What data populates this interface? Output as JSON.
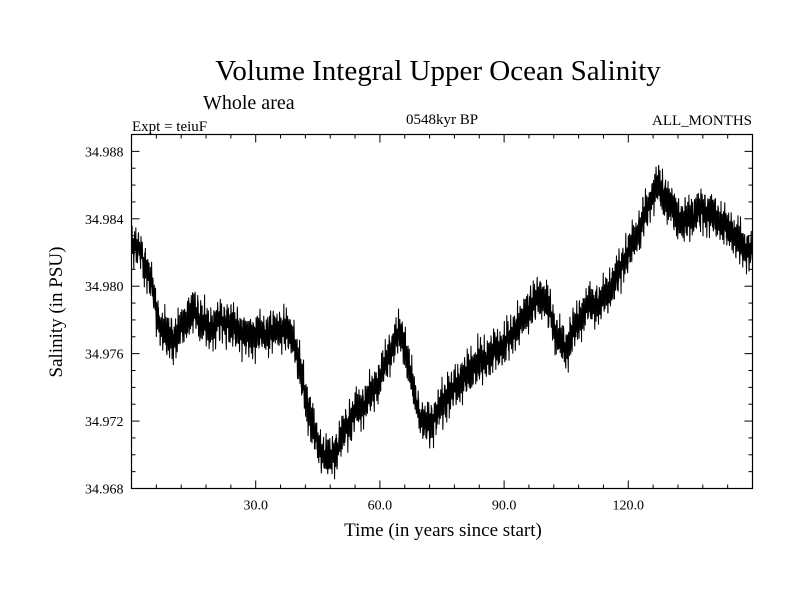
{
  "chart_data": {
    "type": "line",
    "title": "Volume Integral Upper Ocean Salinity",
    "subtitle": "Whole area",
    "experiment": "Expt = teiuF",
    "period": "0548kyr BP",
    "months": "ALL_MONTHS",
    "xlabel": "Time (in years since start)",
    "ylabel": "Salinity (in PSU)",
    "xlim": [
      0,
      150
    ],
    "ylim": [
      34.968,
      34.989
    ],
    "x_ticks": [
      30,
      60,
      90,
      120
    ],
    "x_tick_labels": [
      "30.0",
      "60.0",
      "90.0",
      "120.0"
    ],
    "y_ticks": [
      34.968,
      34.972,
      34.976,
      34.98,
      34.984,
      34.988
    ],
    "y_tick_labels": [
      "34.968",
      "34.972",
      "34.976",
      "34.980",
      "34.984",
      "34.988"
    ],
    "series": [
      {
        "name": "Salinity",
        "x": [
          0,
          2,
          3,
          5,
          6,
          7,
          9,
          11,
          13,
          15,
          17,
          19,
          22,
          25,
          28,
          31,
          34,
          37,
          39,
          40,
          42,
          44,
          46,
          48,
          50,
          52,
          54,
          56,
          58,
          60,
          62,
          64,
          65,
          66,
          68,
          70,
          72,
          75,
          78,
          81,
          84,
          87,
          90,
          93,
          96,
          99,
          101,
          103,
          105,
          106,
          108,
          110,
          113,
          116,
          119,
          122,
          125,
          127,
          129,
          131,
          133,
          135,
          137,
          140,
          142,
          145,
          148,
          150
        ],
        "y": [
          34.9825,
          34.9822,
          34.9815,
          34.98,
          34.9785,
          34.9775,
          34.977,
          34.977,
          34.978,
          34.9785,
          34.978,
          34.9775,
          34.978,
          34.9775,
          34.977,
          34.9772,
          34.9773,
          34.9775,
          34.977,
          34.976,
          34.9735,
          34.9715,
          34.97,
          34.9697,
          34.9705,
          34.9718,
          34.9725,
          34.973,
          34.9738,
          34.9745,
          34.9758,
          34.977,
          34.9772,
          34.9765,
          34.974,
          34.972,
          34.9718,
          34.973,
          34.974,
          34.9748,
          34.9755,
          34.976,
          34.9765,
          34.9775,
          34.9788,
          34.9795,
          34.9785,
          34.977,
          34.9762,
          34.977,
          34.978,
          34.9788,
          34.979,
          34.98,
          34.9815,
          34.983,
          34.9848,
          34.986,
          34.9852,
          34.9845,
          34.9838,
          34.984,
          34.9845,
          34.9843,
          34.9838,
          34.9832,
          34.9822,
          34.9822
        ]
      }
    ]
  }
}
